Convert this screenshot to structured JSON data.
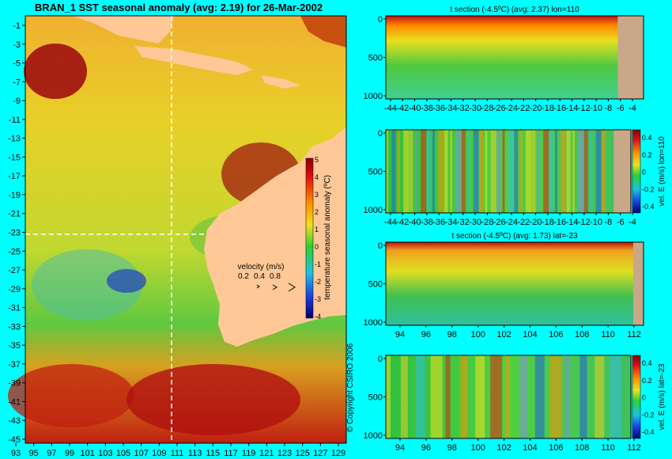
{
  "map": {
    "title": "BRAN_1  SST seasonal anomaly  (avg: 2.19) for 26-Mar-2002",
    "lat_ticks": [
      "-1",
      "-3",
      "-5",
      "-7",
      "-9",
      "-11",
      "-13",
      "-15",
      "-17",
      "-19",
      "-21",
      "-23",
      "-25",
      "-27",
      "-29",
      "-31",
      "-33",
      "-35",
      "-37",
      "-39",
      "-41",
      "-43",
      "-45"
    ],
    "lon_ticks": [
      "93",
      "95",
      "97",
      "99",
      "101",
      "103",
      "105",
      "107",
      "109",
      "111",
      "113",
      "115",
      "117",
      "119",
      "121",
      "123",
      "125",
      "127",
      "129"
    ],
    "colorbar": {
      "label": "temperature seasonal anomaly (ºC)",
      "ticks": [
        "5",
        "4",
        "3",
        "2",
        "1",
        "0",
        "-1",
        "-2",
        "-3",
        "-4"
      ]
    },
    "velocity_legend": {
      "title": "velocity (m/s)",
      "values": [
        "0.2",
        "0.4",
        "0.8"
      ]
    },
    "copyright": "© Copyright CSIRO 2006"
  },
  "panels": [
    {
      "title": "t section (-4.5ºC)  (avg: 2.37) lon=110",
      "x_ticks": [
        "-44",
        "-42",
        "-40",
        "-38",
        "-36",
        "-34",
        "-32",
        "-30",
        "-28",
        "-26",
        "-24",
        "-22",
        "-20",
        "-18",
        "-16",
        "-14",
        "-12",
        "-10",
        "-8",
        "-6",
        "-4"
      ],
      "y_ticks": [
        "0",
        "500",
        "1000"
      ]
    },
    {
      "title": "",
      "x_ticks": [
        "-44",
        "-42",
        "-40",
        "-38",
        "-36",
        "-34",
        "-32",
        "-30",
        "-28",
        "-26",
        "-24",
        "-22",
        "-20",
        "-18",
        "-16",
        "-14",
        "-12",
        "-10",
        "-8",
        "-6",
        "-4"
      ],
      "y_ticks": [
        "0",
        "500",
        "1000"
      ],
      "colorbar_label": "vel. E (m/s) lon=110",
      "colorbar_ticks": [
        "0.4",
        "0.2",
        "0",
        "-0.2",
        "-0.4"
      ]
    },
    {
      "title": "t section (-4.5ºC)  (avg: 1.73) lat=-23",
      "x_ticks": [
        "94",
        "96",
        "98",
        "100",
        "102",
        "104",
        "106",
        "108",
        "110",
        "112"
      ],
      "y_ticks": [
        "0",
        "500",
        "1000"
      ]
    },
    {
      "title": "",
      "x_ticks": [
        "94",
        "96",
        "98",
        "100",
        "102",
        "104",
        "106",
        "108",
        "110",
        "112"
      ],
      "y_ticks": [
        "0",
        "500",
        "1000"
      ],
      "colorbar_label": "vel. E (m/s) lat=-23",
      "colorbar_ticks": [
        "0.4",
        "0.2",
        "0",
        "-0.2",
        "-0.4"
      ]
    }
  ],
  "colors": {
    "background": "#00ffff",
    "land": "#ffc896",
    "section_land": "#c8a888",
    "ocean_mid": "#d8e020"
  }
}
